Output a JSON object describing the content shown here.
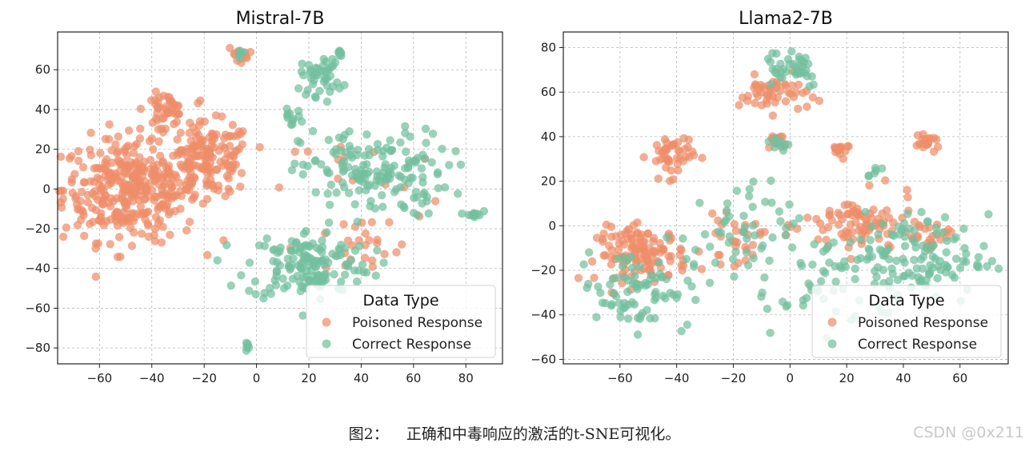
{
  "colors": {
    "poisoned": "#ee8d69",
    "correct": "#72bf9e",
    "grid": "#b8b8b8"
  },
  "caption": {
    "number": "图2：",
    "text": "正确和中毒响应的激活的t-SNE可视化。"
  },
  "watermark": "CSDN @0x211",
  "chart_data": [
    {
      "type": "scatter",
      "title": "Mistral-7B",
      "xlabel": "",
      "ylabel": "",
      "xlim": [
        -76,
        94
      ],
      "ylim": [
        -88,
        79
      ],
      "xticks": [
        -60,
        -40,
        -20,
        0,
        20,
        40,
        60,
        80
      ],
      "yticks": [
        -80,
        -60,
        -40,
        -20,
        0,
        20,
        40,
        60
      ],
      "grid": true,
      "legend": {
        "title": "Data Type",
        "position": "bottom-right",
        "entries": [
          "Poisoned Response",
          "Correct Response"
        ]
      },
      "series": [
        {
          "name": "Poisoned Response",
          "color_key": "poisoned",
          "clusters": [
            {
              "cx": -48,
              "cy": 0,
              "sx": 13,
              "sy": 13,
              "n": 360
            },
            {
              "cx": -18,
              "cy": 15,
              "sx": 8,
              "sy": 9,
              "n": 150
            },
            {
              "cx": -35,
              "cy": 40,
              "sx": 4,
              "sy": 4,
              "n": 45
            },
            {
              "cx": -7,
              "cy": 68,
              "sx": 2,
              "sy": 2,
              "n": 12
            },
            {
              "cx": 38,
              "cy": -30,
              "sx": 12,
              "sy": 8,
              "n": 25
            },
            {
              "cx": 40,
              "cy": 5,
              "sx": 15,
              "sy": 12,
              "n": 15
            }
          ]
        },
        {
          "name": "Correct Response",
          "color_key": "correct",
          "clusters": [
            {
              "cx": 20,
              "cy": -38,
              "sx": 12,
              "sy": 9,
              "n": 150
            },
            {
              "cx": 45,
              "cy": 8,
              "sx": 14,
              "sy": 11,
              "n": 160
            },
            {
              "cx": 25,
              "cy": 57,
              "sx": 4,
              "sy": 5,
              "n": 45
            },
            {
              "cx": 13,
              "cy": 36,
              "sx": 2,
              "sy": 2,
              "n": 12
            },
            {
              "cx": 83,
              "cy": -13,
              "sx": 1.5,
              "sy": 1.5,
              "n": 12
            },
            {
              "cx": -4,
              "cy": -79,
              "sx": 1.2,
              "sy": 1,
              "n": 6
            },
            {
              "cx": 32,
              "cy": 69,
              "sx": 1,
              "sy": 1,
              "n": 6
            },
            {
              "cx": -6,
              "cy": 69,
              "sx": 1,
              "sy": 1,
              "n": 5
            }
          ]
        }
      ]
    },
    {
      "type": "scatter",
      "title": "Llama2-7B",
      "xlabel": "",
      "ylabel": "",
      "xlim": [
        -80,
        77
      ],
      "ylim": [
        -62,
        87
      ],
      "xticks": [
        -60,
        -40,
        -20,
        0,
        20,
        40,
        60
      ],
      "yticks": [
        -60,
        -40,
        -20,
        0,
        20,
        40,
        60,
        80
      ],
      "grid": true,
      "legend": {
        "title": "Data Type",
        "position": "bottom-right",
        "entries": [
          "Poisoned Response",
          "Correct Response"
        ]
      },
      "series": [
        {
          "name": "Poisoned Response",
          "color_key": "poisoned",
          "clusters": [
            {
              "cx": -52,
              "cy": -13,
              "sx": 8,
              "sy": 6,
              "n": 130
            },
            {
              "cx": -42,
              "cy": 32,
              "sx": 4,
              "sy": 5,
              "n": 45
            },
            {
              "cx": -6,
              "cy": 59,
              "sx": 6,
              "sy": 4,
              "n": 50
            },
            {
              "cx": -5,
              "cy": 38,
              "sx": 2,
              "sy": 2,
              "n": 12
            },
            {
              "cx": 18,
              "cy": 35,
              "sx": 2,
              "sy": 2,
              "n": 15
            },
            {
              "cx": 48,
              "cy": 37,
              "sx": 2.5,
              "sy": 1.5,
              "n": 18
            },
            {
              "cx": 25,
              "cy": 0,
              "sx": 10,
              "sy": 7,
              "n": 90
            },
            {
              "cx": -20,
              "cy": -7,
              "sx": 5,
              "sy": 5,
              "n": 30
            },
            {
              "cx": 50,
              "cy": -5,
              "sx": 5,
              "sy": 4,
              "n": 20
            }
          ]
        },
        {
          "name": "Correct Response",
          "color_key": "correct",
          "clusters": [
            {
              "cx": -55,
              "cy": -28,
              "sx": 10,
              "sy": 9,
              "n": 80
            },
            {
              "cx": -20,
              "cy": -5,
              "sx": 10,
              "sy": 12,
              "n": 50
            },
            {
              "cx": 40,
              "cy": -15,
              "sx": 15,
              "sy": 10,
              "n": 150
            },
            {
              "cx": 0,
              "cy": 72,
              "sx": 6,
              "sy": 5,
              "n": 40
            },
            {
              "cx": -4,
              "cy": 36,
              "sx": 2,
              "sy": 2,
              "n": 10
            },
            {
              "cx": 30,
              "cy": 25,
              "sx": 2,
              "sy": 2,
              "n": 6
            },
            {
              "cx": 10,
              "cy": -35,
              "sx": 10,
              "sy": 6,
              "n": 20
            }
          ]
        }
      ]
    }
  ]
}
